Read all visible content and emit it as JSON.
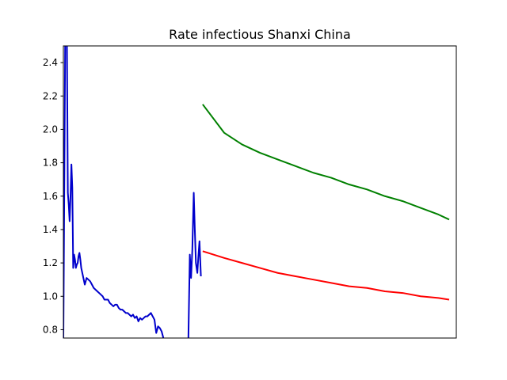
{
  "chart_data": {
    "type": "line",
    "title": "Rate infectious Shanxi China",
    "xlabel": "",
    "ylabel": "",
    "x_ticks_shown": false,
    "xlim": [
      0,
      220
    ],
    "ylim": [
      0.75,
      2.5
    ],
    "yticks": [
      0.8,
      1.0,
      1.2,
      1.4,
      1.6,
      1.8,
      2.0,
      2.2,
      2.4
    ],
    "ytick_labels": [
      "0.8",
      "1.0",
      "1.2",
      "1.4",
      "1.6",
      "1.8",
      "2.0",
      "2.2",
      "2.4"
    ],
    "grid": false,
    "legend": "none",
    "series": [
      {
        "color": "#0000cc",
        "x": [
          0,
          1,
          1.4,
          2,
          2.5,
          3,
          3.5,
          4,
          4.5,
          5,
          5.5,
          6,
          6.5,
          7,
          7.5,
          8,
          8.5,
          9,
          9.5,
          10,
          11,
          12,
          13,
          14,
          15,
          16,
          17,
          18,
          19,
          20,
          21,
          22,
          23,
          24,
          25,
          26,
          27,
          28,
          29,
          30,
          31,
          32,
          33,
          34,
          35,
          36,
          37,
          38,
          39,
          40,
          41,
          42,
          43,
          44,
          45,
          46,
          47,
          48,
          49,
          50,
          51,
          52,
          53,
          54,
          55,
          56
        ],
        "y": [
          0.75,
          2.5,
          3.0,
          2.5,
          1.62,
          1.55,
          1.45,
          1.6,
          1.79,
          1.65,
          1.17,
          1.25,
          1.22,
          1.17,
          1.19,
          1.2,
          1.24,
          1.26,
          1.22,
          1.17,
          1.12,
          1.07,
          1.11,
          1.1,
          1.09,
          1.07,
          1.05,
          1.04,
          1.03,
          1.02,
          1.01,
          1.0,
          0.98,
          0.98,
          0.98,
          0.96,
          0.95,
          0.94,
          0.95,
          0.95,
          0.93,
          0.92,
          0.92,
          0.91,
          0.9,
          0.9,
          0.89,
          0.88,
          0.89,
          0.87,
          0.88,
          0.85,
          0.87,
          0.86,
          0.87,
          0.88,
          0.88,
          0.89,
          0.9,
          0.88,
          0.86,
          0.78,
          0.82,
          0.81,
          0.79,
          0.75
        ]
      },
      {
        "color": "#0000cc",
        "x": [
          70,
          70.8,
          71.5,
          72.2,
          73,
          73.6,
          74.2,
          75,
          75.6,
          76.2,
          77
        ],
        "y": [
          0.75,
          1.25,
          1.11,
          1.28,
          1.62,
          1.4,
          1.2,
          1.14,
          1.24,
          1.33,
          1.12
        ]
      },
      {
        "color": "#008000",
        "x": [
          78,
          90,
          100,
          110,
          120,
          130,
          140,
          150,
          160,
          170,
          180,
          190,
          200,
          210,
          216
        ],
        "y": [
          2.15,
          1.98,
          1.91,
          1.86,
          1.82,
          1.78,
          1.74,
          1.71,
          1.67,
          1.64,
          1.6,
          1.57,
          1.53,
          1.49,
          1.46
        ]
      },
      {
        "color": "#ff0000",
        "x": [
          78,
          90,
          100,
          110,
          120,
          130,
          140,
          150,
          160,
          170,
          180,
          190,
          200,
          210,
          216
        ],
        "y": [
          1.27,
          1.23,
          1.2,
          1.17,
          1.14,
          1.12,
          1.1,
          1.08,
          1.06,
          1.05,
          1.03,
          1.02,
          1.0,
          0.99,
          0.98
        ]
      }
    ]
  }
}
